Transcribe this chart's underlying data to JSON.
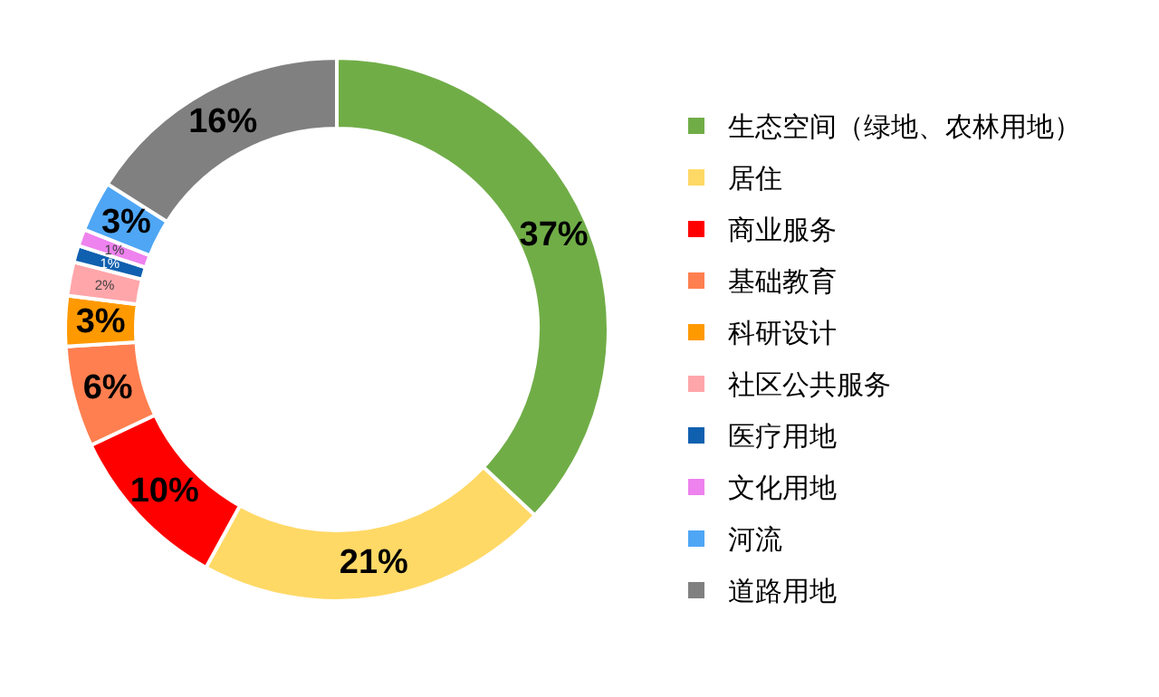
{
  "chart_data": {
    "type": "donut",
    "categories": [
      "生态空间（绿地、农林用地）",
      "居住",
      "商业服务",
      "基础教育",
      "科研设计",
      "社区公共服务",
      "医疗用地",
      "文化用地",
      "河流",
      "道路用地"
    ],
    "values": [
      37,
      21,
      10,
      6,
      3,
      2,
      1,
      1,
      3,
      16
    ],
    "value_labels": [
      "37%",
      "21%",
      "10%",
      "6%",
      "3%",
      "2%",
      "1%",
      "1%",
      "3%",
      "16%"
    ],
    "colors": [
      "#70ad47",
      "#ffd966",
      "#ff0000",
      "#ff7f50",
      "#ff9900",
      "#ffa6aa",
      "#1060b0",
      "#ee82ee",
      "#4ea6f5",
      "#808080"
    ],
    "legend": "right"
  }
}
